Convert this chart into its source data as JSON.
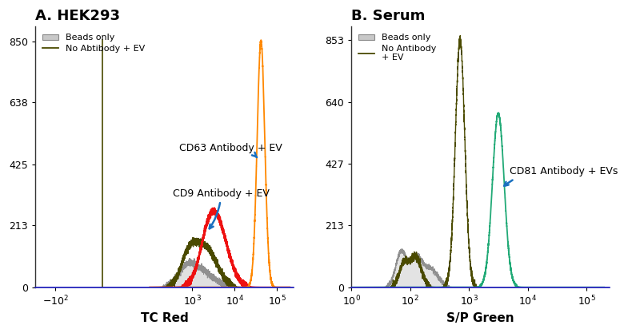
{
  "panel_A": {
    "title": "A. HEK293",
    "xlabel": "TC Red",
    "ylabel_ticks": [
      0,
      213,
      425,
      638,
      850
    ],
    "ylim": [
      0,
      900
    ],
    "curves": {
      "beads_fill_color": "#c8c8c8",
      "beads_line_color": "#909090",
      "no_ab_line_color": "#4a4a00",
      "cd9_line_color": "#ee1111",
      "cd63_line_color": "#ff8800"
    }
  },
  "panel_B": {
    "title": "B. Serum",
    "xlabel": "S/P Green",
    "ylabel_ticks": [
      0,
      213,
      427,
      640,
      853
    ],
    "ylim": [
      0,
      900
    ],
    "curves": {
      "beads_fill_color": "#c8c8c8",
      "beads_line_color": "#909090",
      "no_ab_line_color": "#4a4a00",
      "cd81_line_color": "#22aa77"
    }
  },
  "background_color": "#ffffff",
  "title_fontsize": 13,
  "label_fontsize": 11,
  "tick_fontsize": 9,
  "annotation_fontsize": 9,
  "arrow_color": "#1a70c0"
}
